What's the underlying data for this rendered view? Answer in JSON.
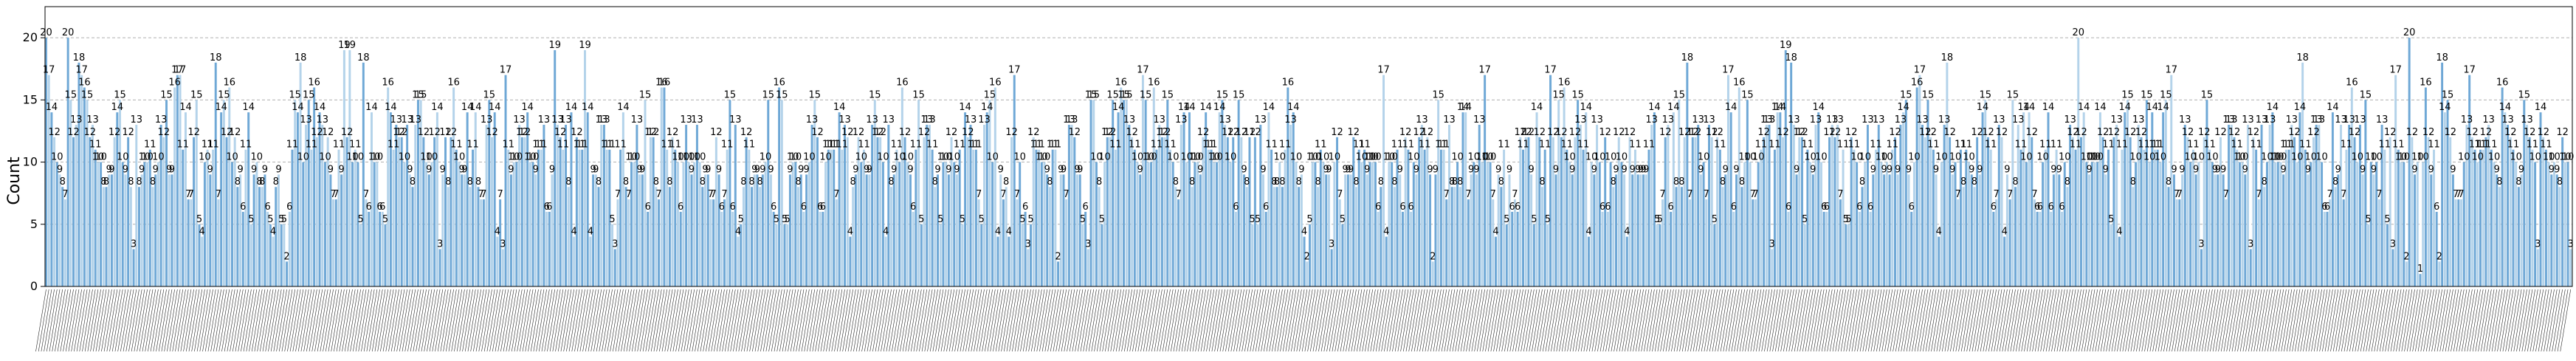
{
  "chart_data": {
    "type": "bar",
    "title": "",
    "xlabel": "",
    "ylabel": "Count",
    "ylim": [
      0,
      22.5
    ],
    "yticks": [
      0,
      5,
      10,
      15,
      20
    ],
    "grid": "y-dashed",
    "bar_color": "#6fa8d6",
    "bar_color_alt": "#b4d3ea",
    "gridline_color": "#b0b0b0",
    "values": [
      20,
      17,
      14,
      12,
      10,
      9,
      8,
      7,
      20,
      15,
      12,
      13,
      18,
      17,
      16,
      15,
      12,
      13,
      11,
      10,
      10,
      8,
      8,
      9,
      9,
      12,
      14,
      15,
      10,
      9,
      12,
      8,
      3,
      13,
      8,
      9,
      10,
      10,
      11,
      8,
      9,
      10,
      13,
      12,
      15,
      9,
      9,
      16,
      17,
      17,
      11,
      14,
      7,
      7,
      12,
      15,
      5,
      4,
      10,
      11,
      9,
      11,
      18,
      7,
      14,
      15,
      12,
      16,
      10,
      12,
      8,
      9,
      6,
      11,
      14,
      5,
      9,
      10,
      8,
      8,
      9,
      6,
      5,
      4,
      8,
      9,
      5,
      5,
      2,
      6,
      11,
      15,
      14,
      18,
      10,
      13,
      15,
      11,
      16,
      12,
      14,
      13,
      10,
      12,
      9,
      7,
      7,
      11,
      9,
      19,
      12,
      19,
      10,
      11,
      10,
      5,
      18,
      7,
      6,
      14,
      10,
      10,
      6,
      6,
      5,
      16,
      14,
      11,
      13,
      12,
      12,
      10,
      13,
      9,
      8,
      13,
      15,
      15,
      12,
      10,
      9,
      10,
      12,
      14,
      3,
      9,
      12,
      8,
      12,
      16,
      11,
      10,
      9,
      9,
      14,
      8,
      11,
      14,
      8,
      7,
      7,
      13,
      15,
      12,
      14,
      4,
      7,
      3,
      17,
      11,
      9,
      10,
      10,
      13,
      12,
      12,
      14,
      10,
      10,
      9,
      11,
      11,
      13,
      6,
      6,
      9,
      19,
      13,
      12,
      11,
      13,
      8,
      14,
      4,
      12,
      11,
      11,
      19,
      14,
      4,
      9,
      9,
      8,
      13,
      13,
      11,
      11,
      5,
      3,
      7,
      11,
      14,
      8,
      7,
      10,
      10,
      13,
      9,
      9,
      15,
      6,
      12,
      12,
      8,
      7,
      16,
      16,
      11,
      8,
      12,
      11,
      10,
      6,
      10,
      13,
      10,
      9,
      10,
      13,
      10,
      8,
      9,
      9,
      7,
      7,
      12,
      9,
      6,
      7,
      11,
      15,
      6,
      13,
      4,
      5,
      8,
      12,
      11,
      8,
      9,
      9,
      8,
      9,
      10,
      15,
      9,
      6,
      5,
      16,
      15,
      5,
      5,
      9,
      10,
      10,
      8,
      9,
      6,
      9,
      10,
      13,
      15,
      12,
      6,
      6,
      10,
      11,
      11,
      11,
      7,
      14,
      11,
      13,
      12,
      4,
      8,
      9,
      12,
      10,
      11,
      9,
      9,
      13,
      15,
      12,
      12,
      10,
      4,
      13,
      8,
      9,
      11,
      10,
      16,
      12,
      10,
      9,
      6,
      11,
      15,
      5,
      12,
      13,
      13,
      11,
      8,
      9,
      5,
      10,
      10,
      9,
      12,
      10,
      9,
      11,
      5,
      14,
      12,
      13,
      11,
      11,
      7,
      5,
      13,
      14,
      15,
      10,
      16,
      4,
      9,
      7,
      8,
      4,
      12,
      17,
      7,
      10,
      5,
      6,
      3,
      5,
      12,
      11,
      11,
      10,
      10,
      9,
      8,
      11,
      11,
      2,
      9,
      9,
      7,
      13,
      13,
      12,
      9,
      9,
      5,
      6,
      3,
      15,
      15,
      10,
      8,
      5,
      10,
      12,
      12,
      15,
      11,
      14,
      16,
      15,
      15,
      13,
      12,
      11,
      10,
      9,
      17,
      15,
      10,
      10,
      16,
      11,
      13,
      12,
      12,
      15,
      11,
      10,
      8,
      7,
      13,
      14,
      10,
      14,
      8,
      10,
      10,
      9,
      12,
      14,
      11,
      11,
      10,
      10,
      14,
      15,
      13,
      12,
      10,
      12,
      6,
      15,
      12,
      9,
      8,
      12,
      5,
      12,
      5,
      13,
      9,
      6,
      14,
      11,
      8,
      8,
      10,
      8,
      11,
      16,
      13,
      14,
      10,
      8,
      9,
      4,
      2,
      5,
      10,
      10,
      8,
      11,
      10,
      9,
      9,
      3,
      10,
      12,
      7,
      5,
      9,
      9,
      9,
      12,
      8,
      11,
      10,
      11,
      9,
      10,
      10,
      10,
      6,
      8,
      17,
      4,
      10,
      10,
      8,
      11,
      9,
      6,
      12,
      11,
      6,
      10,
      9,
      12,
      13,
      11,
      12,
      9,
      2,
      9,
      15,
      11,
      11,
      7,
      13,
      8,
      8,
      10,
      8,
      14,
      14,
      7,
      9,
      10,
      9,
      13,
      10,
      17,
      10,
      10,
      7,
      4,
      9,
      8,
      11,
      5,
      9,
      6,
      7,
      6,
      12,
      11,
      12,
      12,
      9,
      5,
      14,
      12,
      8,
      11,
      5,
      17,
      12,
      9,
      15,
      12,
      16,
      11,
      10,
      9,
      12,
      15,
      13,
      11,
      14,
      4,
      10,
      9,
      13,
      10,
      6,
      12,
      6,
      10,
      8,
      9,
      12,
      10,
      9,
      4,
      12,
      9,
      11,
      9,
      9,
      9,
      9,
      11,
      13,
      14,
      5,
      5,
      7,
      12,
      13,
      6,
      14,
      8,
      15,
      8,
      12,
      18,
      7,
      12,
      12,
      13,
      9,
      10,
      7,
      13,
      12,
      5,
      12,
      11,
      8,
      9,
      17,
      14,
      6,
      9,
      16,
      8,
      10,
      15,
      10,
      7,
      7,
      10,
      11,
      12,
      13,
      13,
      3,
      11,
      14,
      14,
      12,
      19,
      6,
      18,
      13,
      9,
      12,
      12,
      5,
      11,
      10,
      9,
      13,
      14,
      10,
      6,
      6,
      12,
      13,
      12,
      13,
      7,
      11,
      5,
      5,
      12,
      11,
      10,
      6,
      8,
      10,
      13,
      6,
      9,
      11,
      13,
      10,
      9,
      10,
      9,
      11,
      12,
      9,
      13,
      14,
      15,
      9,
      6,
      10,
      16,
      17,
      13,
      12,
      15,
      12,
      11,
      9,
      4,
      10,
      13,
      18,
      12,
      9,
      10,
      7,
      11,
      8,
      11,
      10,
      9,
      8,
      12,
      9,
      14,
      15,
      12,
      11,
      6,
      7,
      13,
      12,
      4,
      9,
      7,
      15,
      8,
      13,
      11,
      14,
      10,
      14,
      12,
      7,
      6,
      6,
      10,
      11,
      14,
      6,
      9,
      11,
      9,
      6,
      10,
      8,
      13,
      12,
      11,
      20,
      12,
      14,
      10,
      9,
      10,
      10,
      10,
      14,
      12,
      9,
      11,
      5,
      12,
      13,
      4,
      11,
      14,
      15,
      12,
      8,
      10,
      13,
      12,
      11,
      15,
      10,
      14,
      11,
      11,
      10,
      14,
      15,
      8,
      17,
      9,
      7,
      7,
      9,
      13,
      12,
      10,
      11,
      9,
      10,
      3,
      12,
      15,
      11,
      10,
      9,
      9,
      12,
      9,
      7,
      13,
      13,
      12,
      11,
      10,
      10,
      9,
      13,
      3,
      12,
      11,
      7,
      13,
      8,
      10,
      13,
      14,
      10,
      10,
      10,
      9,
      11,
      11,
      13,
      12,
      10,
      14,
      18,
      11,
      9,
      10,
      12,
      13,
      13,
      10,
      6,
      6,
      7,
      14,
      8,
      9,
      13,
      7,
      11,
      13,
      16,
      12,
      10,
      13,
      9,
      15,
      5,
      10,
      9,
      10,
      7,
      13,
      11,
      5,
      12,
      3,
      17,
      11,
      10,
      10,
      2,
      20,
      12,
      9,
      10,
      1,
      10,
      16,
      12,
      9,
      11,
      6,
      2,
      18,
      14,
      15,
      12,
      9,
      7,
      7,
      7,
      10,
      13,
      17,
      12,
      11,
      10,
      11,
      11,
      12,
      13,
      11,
      10,
      9,
      8,
      16,
      14,
      13,
      12,
      11,
      10,
      8,
      9,
      15,
      13,
      12,
      11,
      10,
      3,
      14,
      12,
      11,
      10,
      9,
      10,
      9,
      8,
      12,
      10,
      10,
      3
    ]
  }
}
